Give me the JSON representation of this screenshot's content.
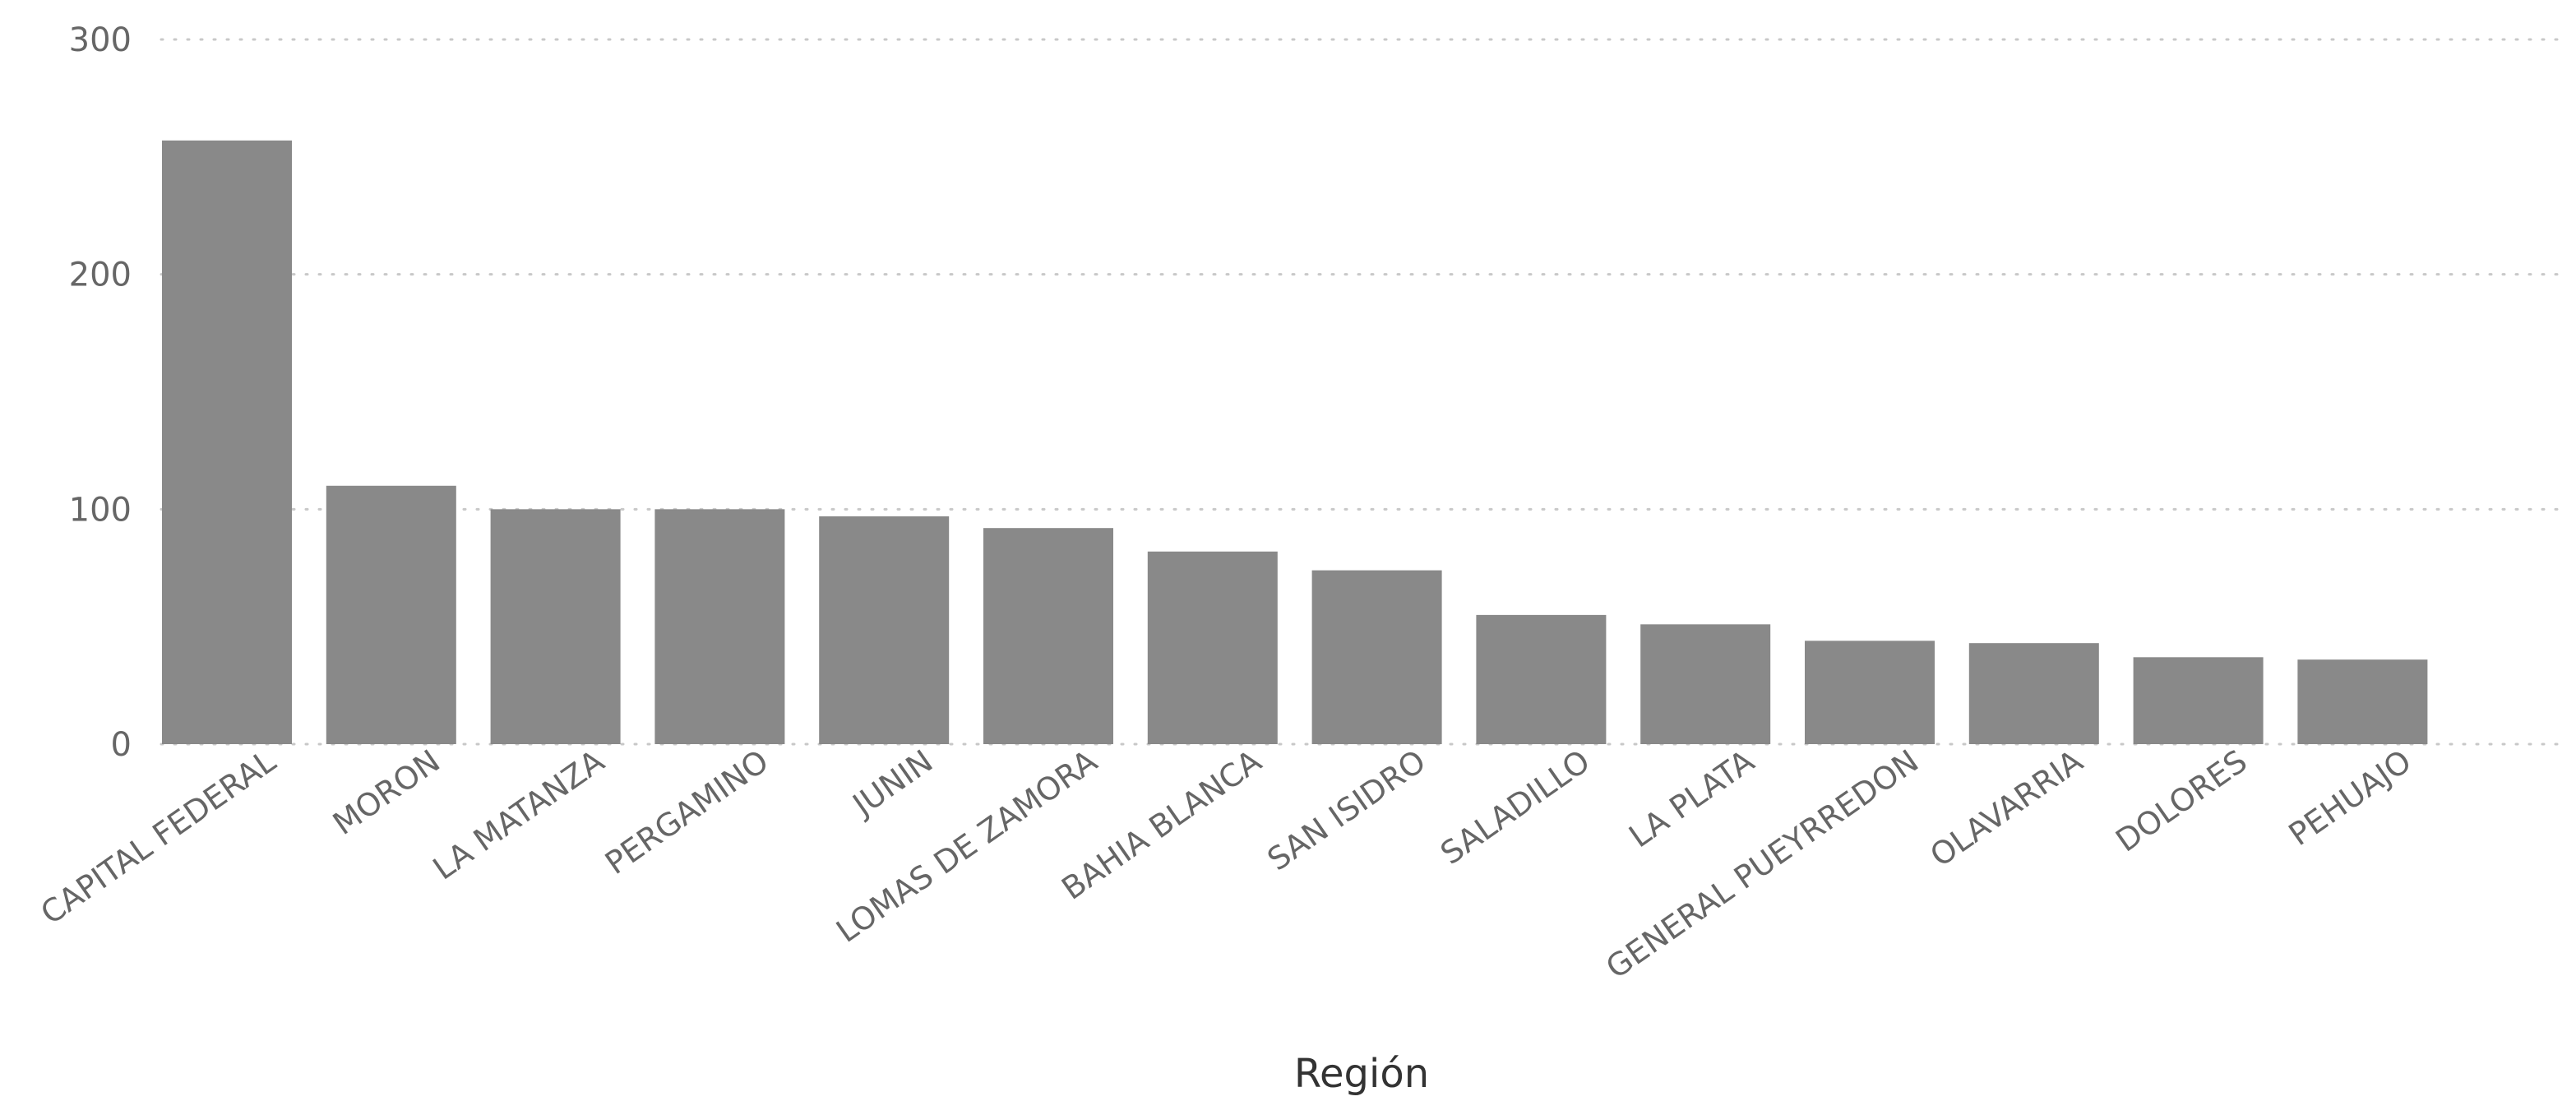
{
  "chart_data": {
    "type": "bar",
    "categories": [
      "CAPITAL FEDERAL",
      "MORON",
      "LA MATANZA",
      "PERGAMINO",
      "JUNIN",
      "LOMAS DE ZAMORA",
      "BAHIA BLANCA",
      "SAN ISIDRO",
      "SALADILLO",
      "LA PLATA",
      "GENERAL PUEYRREDON",
      "OLAVARRIA",
      "DOLORES",
      "PEHUAJO"
    ],
    "values": [
      257,
      110,
      100,
      100,
      97,
      92,
      82,
      74,
      55,
      51,
      44,
      43,
      37,
      36
    ],
    "xlabel": "Región",
    "ylabel": "",
    "ylim": [
      0,
      300
    ],
    "yticks": [
      0,
      100,
      200,
      300
    ],
    "grid": true,
    "bar_color": "#898989",
    "grid_color": "#c8c8c8",
    "label_color": "#666666"
  }
}
